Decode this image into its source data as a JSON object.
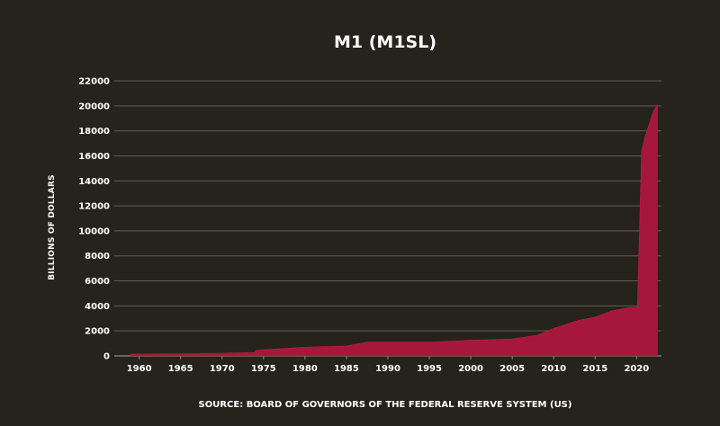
{
  "chart_data": {
    "type": "area",
    "title": "M1 (M1SL)",
    "ylabel": "BILLIONS OF DOLLARS",
    "xlabel": "",
    "source": "SOURCE: BOARD OF GOVERNORS OF THE FEDERAL RESERVE SYSTEM (US)",
    "xlim": [
      1957,
      2023
    ],
    "ylim": [
      0,
      22000
    ],
    "yticks": [
      0,
      2000,
      4000,
      6000,
      8000,
      10000,
      12000,
      14000,
      16000,
      18000,
      20000,
      22000
    ],
    "xticks": [
      1960,
      1965,
      1970,
      1975,
      1980,
      1985,
      1990,
      1995,
      2000,
      2005,
      2010,
      2015,
      2020
    ],
    "grid": true,
    "legend": "none",
    "colors": {
      "background": "#25231b",
      "area": "#a5173b",
      "grid": "#8a8577",
      "text": "#ffffff"
    },
    "series": [
      {
        "x": [
          1959,
          1965,
          1970,
          1973.9,
          1974.1,
          1980,
          1985,
          1987.5,
          1990,
          1995,
          2000,
          2005,
          2008,
          2010,
          2013,
          2015,
          2017,
          2019,
          2020.1,
          2020.6,
          2021,
          2022,
          2022.5
        ],
        "values": [
          140,
          165,
          215,
          265,
          450,
          700,
          800,
          1100,
          1100,
          1100,
          1250,
          1350,
          1650,
          2200,
          2850,
          3100,
          3600,
          3850,
          3900,
          16400,
          17500,
          19500,
          20100
        ]
      }
    ]
  }
}
